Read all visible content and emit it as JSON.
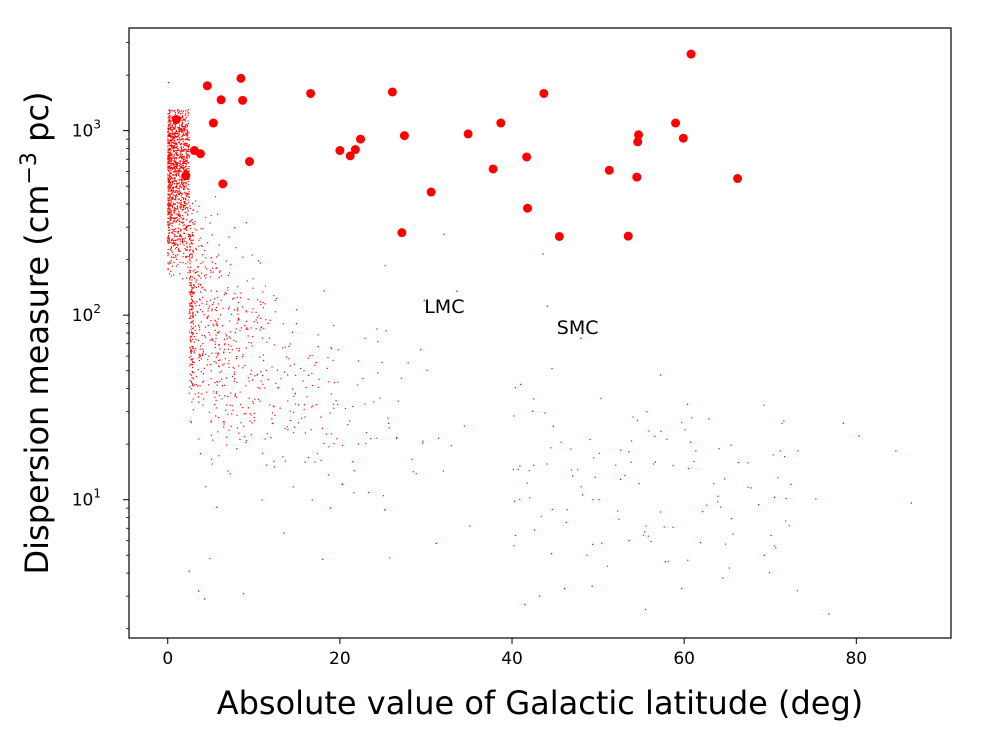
{
  "chart_data": {
    "type": "scatter",
    "title": "",
    "xlabel": "Absolute value of Galactic latitude (deg)",
    "ylabel": "Dispersion measure (cm−3 pc)",
    "ylabel_parts": {
      "main": "Dispersion measure (cm",
      "sup": "−3",
      "tail": " pc)"
    },
    "xlim": [
      -4.5,
      91
    ],
    "ylim": [
      1.78,
      3600
    ],
    "yscale": "log",
    "grid": false,
    "x_ticks": [
      {
        "value": 0,
        "label": "0"
      },
      {
        "value": 20,
        "label": "20"
      },
      {
        "value": 40,
        "label": "40"
      },
      {
        "value": 60,
        "label": "60"
      },
      {
        "value": 80,
        "label": "80"
      }
    ],
    "y_ticks": [
      {
        "value": 10,
        "base": "10",
        "exp": "1"
      },
      {
        "value": 100,
        "base": "10",
        "exp": "2"
      },
      {
        "value": 1000,
        "base": "10",
        "exp": "3"
      }
    ],
    "colors": {
      "points": "#ff0000",
      "axes": "#000000",
      "background": "#ffffff"
    },
    "annotations": [
      {
        "text": "LMC",
        "x": 29.8,
        "y": 103
      },
      {
        "text": "SMC",
        "x": 45.2,
        "y": 79
      }
    ],
    "series": [
      {
        "marker": "large-dot",
        "points": [
          [
            1.0,
            1150
          ],
          [
            2.1,
            570
          ],
          [
            3.1,
            780
          ],
          [
            3.8,
            750
          ],
          [
            4.6,
            1750
          ],
          [
            5.3,
            1100
          ],
          [
            6.2,
            1470
          ],
          [
            6.4,
            515
          ],
          [
            8.5,
            1920
          ],
          [
            8.7,
            1460
          ],
          [
            9.5,
            680
          ],
          [
            16.6,
            1590
          ],
          [
            20.0,
            780
          ],
          [
            21.2,
            730
          ],
          [
            21.8,
            790
          ],
          [
            22.4,
            900
          ],
          [
            26.1,
            1620
          ],
          [
            27.2,
            280
          ],
          [
            27.5,
            940
          ],
          [
            30.6,
            465
          ],
          [
            34.9,
            960
          ],
          [
            37.8,
            620
          ],
          [
            38.7,
            1100
          ],
          [
            41.7,
            720
          ],
          [
            41.8,
            380
          ],
          [
            43.7,
            1590
          ],
          [
            45.5,
            267
          ],
          [
            51.3,
            610
          ],
          [
            53.5,
            268
          ],
          [
            54.5,
            560
          ],
          [
            54.6,
            870
          ],
          [
            54.7,
            950
          ],
          [
            59.0,
            1100
          ],
          [
            59.9,
            910
          ],
          [
            60.8,
            2600
          ],
          [
            66.2,
            550
          ]
        ]
      },
      {
        "marker": "small-dot",
        "points": [
          [
            0.1,
            1820
          ],
          [
            0.2,
            1210
          ],
          [
            0.4,
            1290
          ],
          [
            0.3,
            1120
          ],
          [
            2.5,
            4.1
          ],
          [
            3.6,
            3.2
          ],
          [
            4.3,
            2.9
          ],
          [
            4.9,
            4.8
          ],
          [
            5.7,
            9.1
          ],
          [
            8.8,
            3.1
          ],
          [
            13.5,
            6.6
          ],
          [
            18.9,
            9.0
          ],
          [
            25.2,
            8.8
          ],
          [
            31.2,
            5.8
          ],
          [
            35.1,
            7.2
          ],
          [
            40.4,
            6.4
          ],
          [
            41.5,
            2.7
          ],
          [
            43.2,
            3.0
          ],
          [
            44.6,
            5.1
          ],
          [
            46.1,
            3.3
          ],
          [
            49.3,
            3.4
          ],
          [
            53.6,
            6.0
          ],
          [
            57.8,
            4.6
          ],
          [
            59.7,
            3.3
          ],
          [
            65.5,
            7.9
          ],
          [
            69.3,
            5.0
          ],
          [
            70.1,
            6.4
          ],
          [
            70.5,
            10.3
          ],
          [
            72.4,
            12.1
          ],
          [
            75.3,
            10.1
          ],
          [
            76.8,
            2.4
          ],
          [
            78.5,
            26.0
          ],
          [
            80.3,
            22.1
          ],
          [
            84.6,
            18.4
          ],
          [
            86.4,
            9.6
          ],
          [
            44.8,
            25.0
          ],
          [
            32.1,
            275
          ],
          [
            43.6,
            215
          ],
          [
            44.1,
            112
          ],
          [
            48.0,
            75
          ],
          [
            29.8,
            120
          ],
          [
            33.6,
            135
          ],
          [
            32.3,
            118
          ]
        ]
      }
    ]
  }
}
